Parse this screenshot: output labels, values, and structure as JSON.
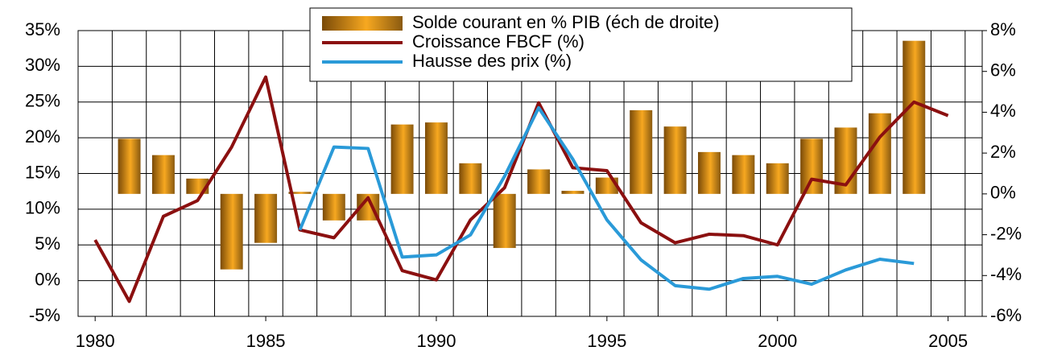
{
  "chart_data": {
    "type": "bar-line",
    "x": [
      1980,
      1981,
      1982,
      1983,
      1984,
      1985,
      1986,
      1987,
      1988,
      1989,
      1990,
      1991,
      1992,
      1993,
      1994,
      1995,
      1996,
      1997,
      1998,
      1999,
      2000,
      2001,
      2002,
      2003,
      2004,
      2005
    ],
    "series": [
      {
        "name": "Solde courant en % PIB (éch de droite)",
        "type": "bar",
        "axis": "y2",
        "color": "#e8960f",
        "values": [
          null,
          2.7,
          1.9,
          0.75,
          -3.7,
          -2.4,
          0.1,
          -1.3,
          -1.3,
          3.4,
          3.5,
          1.5,
          -2.65,
          1.2,
          0.15,
          0.8,
          4.1,
          3.3,
          2.05,
          1.9,
          1.5,
          2.7,
          3.25,
          3.95,
          7.5,
          null
        ]
      },
      {
        "name": "Croissance FBCF (%)",
        "type": "line",
        "color": "#8b1010",
        "values": [
          5.7,
          -2.9,
          9.0,
          11.2,
          18.7,
          28.5,
          7.1,
          6.0,
          11.6,
          1.4,
          0.1,
          8.5,
          13.0,
          24.9,
          15.8,
          15.4,
          8.1,
          5.3,
          6.5,
          6.3,
          5.0,
          14.2,
          13.4,
          20.1,
          25.0,
          23.1
        ]
      },
      {
        "name": "Hausse des prix (%)",
        "type": "line",
        "color": "#2a9ad8",
        "values": [
          null,
          null,
          null,
          null,
          null,
          null,
          7.1,
          18.7,
          18.5,
          3.3,
          3.6,
          6.4,
          14.6,
          24.2,
          17.0,
          8.5,
          2.9,
          -0.7,
          -1.2,
          0.3,
          0.6,
          -0.5,
          1.5,
          3.0,
          2.4,
          null
        ]
      }
    ],
    "xlim": [
      1979.5,
      2006
    ],
    "xticks": [
      1980,
      1985,
      1990,
      1995,
      2000,
      2005
    ],
    "ylim": [
      -5,
      35
    ],
    "yticks": [
      {
        "value": -5,
        "label": "-5%"
      },
      {
        "value": 0,
        "label": "0%"
      },
      {
        "value": 5,
        "label": "5%"
      },
      {
        "value": 10,
        "label": "10%"
      },
      {
        "value": 15,
        "label": "15%"
      },
      {
        "value": 20,
        "label": "20%"
      },
      {
        "value": 25,
        "label": "25%"
      },
      {
        "value": 30,
        "label": "30%"
      },
      {
        "value": 35,
        "label": "35%"
      }
    ],
    "y2lim": [
      -6,
      8
    ],
    "y2ticks": [
      {
        "value": -6,
        "label": "-6%"
      },
      {
        "value": -4,
        "label": "-4%"
      },
      {
        "value": -2,
        "label": "-2%"
      },
      {
        "value": 0,
        "label": "0%"
      },
      {
        "value": 2,
        "label": "2%"
      },
      {
        "value": 4,
        "label": "4%"
      },
      {
        "value": 6,
        "label": "6%"
      },
      {
        "value": 8,
        "label": "8%"
      }
    ],
    "grid": true
  }
}
